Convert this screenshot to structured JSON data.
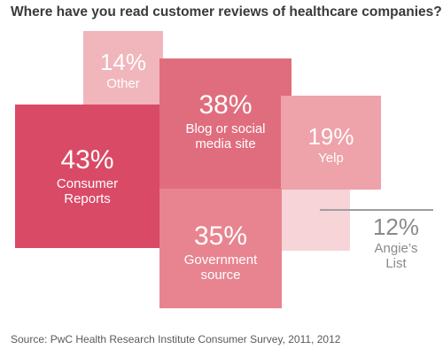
{
  "chart_data": {
    "type": "treemap-bubbles",
    "title": "Where have you read customer reviews of healthcare companies?",
    "categories": [
      "Consumer Reports",
      "Blog or social media site",
      "Government source",
      "Yelp",
      "Other",
      "Angie's List"
    ],
    "values": [
      43,
      38,
      35,
      19,
      14,
      12
    ],
    "items": [
      {
        "pct": "43%",
        "label_line1": "Consumer",
        "label_line2": "Reports",
        "value": 43,
        "color": "#d94a66"
      },
      {
        "pct": "38%",
        "label_line1": "Blog or social",
        "label_line2": "media site",
        "value": 38,
        "color": "#e06d7d"
      },
      {
        "pct": "35%",
        "label_line1": "Government",
        "label_line2": "source",
        "value": 35,
        "color": "#e8848f"
      },
      {
        "pct": "19%",
        "label_line1": "Yelp",
        "label_line2": "",
        "value": 19,
        "color": "#eea2aa"
      },
      {
        "pct": "14%",
        "label_line1": "Other",
        "label_line2": "",
        "value": 14,
        "color": "#f0b6bb"
      },
      {
        "pct": "12%",
        "label_line1": "Angie’s",
        "label_line2": "List",
        "value": 12,
        "color": "#f6d4d7"
      }
    ],
    "source": "Source: PwC Health Research Institute Consumer Survey, 2011, 2012"
  }
}
